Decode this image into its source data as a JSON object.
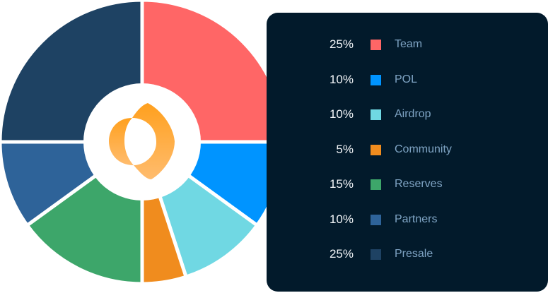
{
  "chart_data": {
    "type": "pie",
    "variant": "donut",
    "title": "",
    "categories": [
      "Team",
      "POL",
      "Airdrop",
      "Community",
      "Reserves",
      "Partners",
      "Presale"
    ],
    "values": [
      25,
      10,
      10,
      5,
      15,
      10,
      25
    ],
    "labels": [
      "25%",
      "10%",
      "10%",
      "5%",
      "15%",
      "10%",
      "25%"
    ],
    "colors": [
      "#ff6666",
      "#0094ff",
      "#70d8e3",
      "#f08c1e",
      "#3da66a",
      "#2e6399",
      "#1e4263"
    ],
    "legend": "right"
  }
}
